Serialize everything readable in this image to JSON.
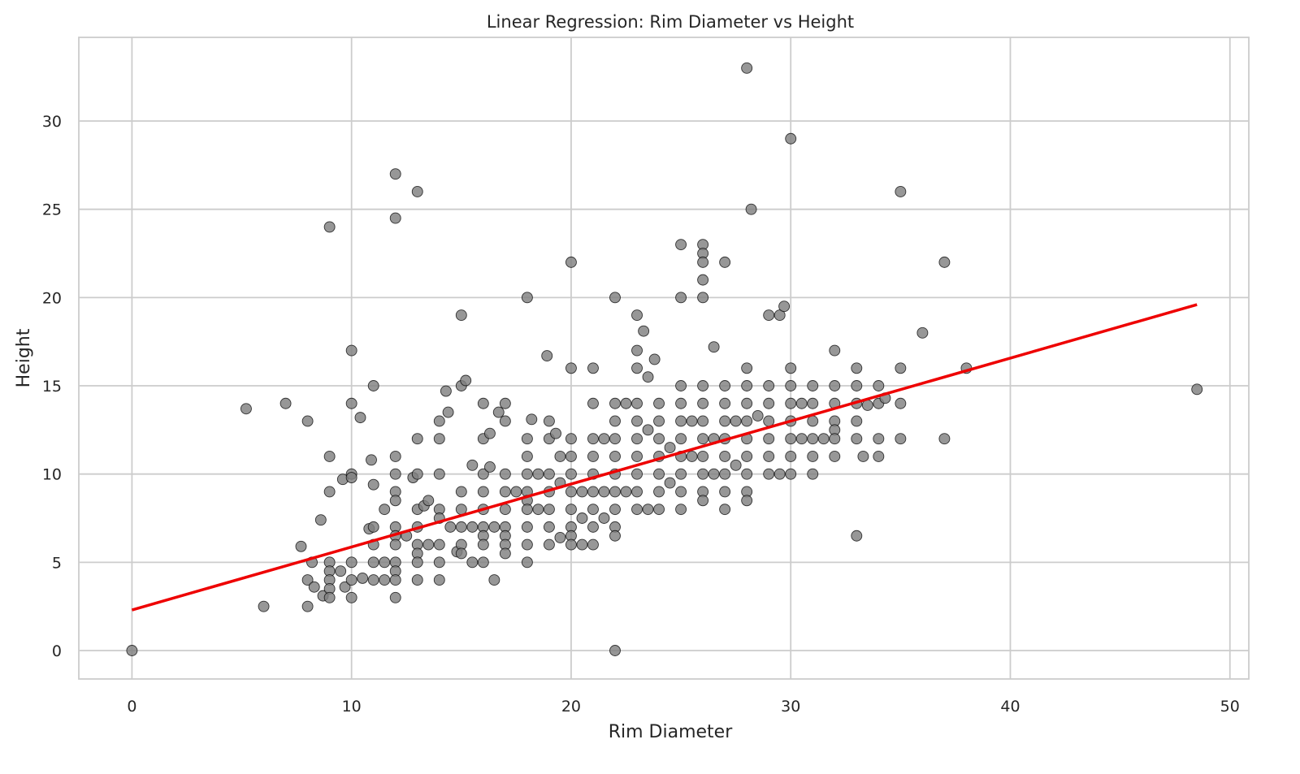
{
  "chart_data": {
    "type": "scatter",
    "title": "Linear Regression: Rim Diameter vs Height",
    "xlabel": "Rim Diameter",
    "ylabel": "Height",
    "xlim": [
      -2.42,
      50.86
    ],
    "ylim": [
      -1.61,
      34.74
    ],
    "xticks": [
      0,
      10,
      20,
      30,
      40,
      50
    ],
    "yticks": [
      0,
      5,
      10,
      15,
      20,
      25,
      30
    ],
    "grid": true,
    "legend": "none",
    "colors": {
      "points": "#808080",
      "point_edge": "#000000",
      "regression": "#ee0000",
      "grid": "#cccccc"
    },
    "regression_line": {
      "x": [
        0,
        48.5
      ],
      "y": [
        2.3,
        19.6
      ]
    },
    "points": [
      [
        0,
        0
      ],
      [
        5.2,
        13.7
      ],
      [
        6,
        2.5
      ],
      [
        7,
        14
      ],
      [
        7.7,
        5.9
      ],
      [
        8,
        13
      ],
      [
        8,
        2.5
      ],
      [
        8,
        4
      ],
      [
        8.2,
        5
      ],
      [
        8.3,
        3.6
      ],
      [
        8.6,
        7.4
      ],
      [
        8.7,
        3.1
      ],
      [
        9,
        24
      ],
      [
        9,
        11
      ],
      [
        9,
        9
      ],
      [
        9,
        5
      ],
      [
        9,
        4.5
      ],
      [
        9,
        4
      ],
      [
        9,
        3.5
      ],
      [
        9,
        3
      ],
      [
        9.5,
        4.5
      ],
      [
        9.6,
        9.7
      ],
      [
        9.7,
        3.6
      ],
      [
        10,
        17
      ],
      [
        10,
        14
      ],
      [
        10,
        10
      ],
      [
        10,
        9.8
      ],
      [
        10,
        5
      ],
      [
        10,
        4
      ],
      [
        10,
        3
      ],
      [
        10.4,
        13.2
      ],
      [
        10.5,
        4.1
      ],
      [
        10.8,
        6.9
      ],
      [
        10.9,
        10.8
      ],
      [
        11,
        15
      ],
      [
        11,
        9.4
      ],
      [
        11,
        7
      ],
      [
        11,
        6
      ],
      [
        11,
        5
      ],
      [
        11,
        4
      ],
      [
        11.5,
        8
      ],
      [
        11.5,
        5
      ],
      [
        11.5,
        4
      ],
      [
        12,
        27
      ],
      [
        12,
        24.5
      ],
      [
        12,
        11
      ],
      [
        12,
        10
      ],
      [
        12,
        9
      ],
      [
        12,
        8.5
      ],
      [
        12,
        7
      ],
      [
        12,
        6.5
      ],
      [
        12,
        6
      ],
      [
        12,
        5
      ],
      [
        12,
        4.5
      ],
      [
        12,
        4
      ],
      [
        12,
        3
      ],
      [
        12.5,
        6.5
      ],
      [
        12.8,
        9.8
      ],
      [
        13,
        26
      ],
      [
        13,
        12
      ],
      [
        13,
        10
      ],
      [
        13,
        8
      ],
      [
        13,
        7
      ],
      [
        13,
        6
      ],
      [
        13,
        5.5
      ],
      [
        13,
        5
      ],
      [
        13,
        4
      ],
      [
        13.3,
        8.2
      ],
      [
        13.5,
        8.5
      ],
      [
        13.5,
        6
      ],
      [
        14,
        13
      ],
      [
        14,
        12
      ],
      [
        14,
        10
      ],
      [
        14,
        8
      ],
      [
        14,
        7.5
      ],
      [
        14,
        6
      ],
      [
        14,
        5
      ],
      [
        14,
        4
      ],
      [
        14.3,
        14.7
      ],
      [
        14.4,
        13.5
      ],
      [
        14.5,
        7
      ],
      [
        14.8,
        5.6
      ],
      [
        15,
        19
      ],
      [
        15,
        15
      ],
      [
        15,
        9
      ],
      [
        15,
        8
      ],
      [
        15,
        7
      ],
      [
        15,
        6
      ],
      [
        15,
        5.5
      ],
      [
        15.2,
        15.3
      ],
      [
        15.5,
        10.5
      ],
      [
        15.5,
        7
      ],
      [
        15.5,
        5
      ],
      [
        16,
        14
      ],
      [
        16,
        12
      ],
      [
        16,
        10
      ],
      [
        16,
        9
      ],
      [
        16,
        8
      ],
      [
        16,
        7
      ],
      [
        16,
        6.5
      ],
      [
        16,
        6
      ],
      [
        16,
        5
      ],
      [
        16.3,
        12.3
      ],
      [
        16.3,
        10.4
      ],
      [
        16.5,
        7
      ],
      [
        16.5,
        4
      ],
      [
        16.7,
        13.5
      ],
      [
        17,
        14
      ],
      [
        17,
        13
      ],
      [
        17,
        10
      ],
      [
        17,
        9
      ],
      [
        17,
        8
      ],
      [
        17,
        7
      ],
      [
        17,
        6.5
      ],
      [
        17,
        6
      ],
      [
        17,
        5.5
      ],
      [
        17.5,
        9
      ],
      [
        18,
        20
      ],
      [
        18,
        12
      ],
      [
        18,
        11
      ],
      [
        18,
        10
      ],
      [
        18,
        9
      ],
      [
        18,
        8.5
      ],
      [
        18,
        8
      ],
      [
        18,
        7
      ],
      [
        18,
        6
      ],
      [
        18,
        5
      ],
      [
        18.2,
        13.1
      ],
      [
        18.5,
        10
      ],
      [
        18.5,
        8
      ],
      [
        18.9,
        16.7
      ],
      [
        19,
        13
      ],
      [
        19,
        12
      ],
      [
        19,
        10
      ],
      [
        19,
        9
      ],
      [
        19,
        8
      ],
      [
        19,
        7
      ],
      [
        19,
        6
      ],
      [
        19.3,
        12.3
      ],
      [
        19.5,
        11
      ],
      [
        19.5,
        9.5
      ],
      [
        19.5,
        6.4
      ],
      [
        20,
        22
      ],
      [
        20,
        16
      ],
      [
        20,
        12
      ],
      [
        20,
        11
      ],
      [
        20,
        10
      ],
      [
        20,
        9
      ],
      [
        20,
        8
      ],
      [
        20,
        7
      ],
      [
        20,
        6.5
      ],
      [
        20,
        6
      ],
      [
        20.5,
        9
      ],
      [
        20.5,
        7.5
      ],
      [
        20.5,
        6
      ],
      [
        21,
        16
      ],
      [
        21,
        14
      ],
      [
        21,
        12
      ],
      [
        21,
        11
      ],
      [
        21,
        10
      ],
      [
        21,
        9
      ],
      [
        21,
        8
      ],
      [
        21,
        7
      ],
      [
        21,
        6
      ],
      [
        21.5,
        12
      ],
      [
        21.5,
        9
      ],
      [
        21.5,
        7.5
      ],
      [
        22,
        20
      ],
      [
        22,
        14
      ],
      [
        22,
        13
      ],
      [
        22,
        12
      ],
      [
        22,
        11
      ],
      [
        22,
        10
      ],
      [
        22,
        9
      ],
      [
        22,
        8
      ],
      [
        22,
        7
      ],
      [
        22,
        6.5
      ],
      [
        22,
        0
      ],
      [
        22.5,
        14
      ],
      [
        22.5,
        9
      ],
      [
        23,
        19
      ],
      [
        23,
        17
      ],
      [
        23,
        16
      ],
      [
        23,
        14
      ],
      [
        23,
        13
      ],
      [
        23,
        12
      ],
      [
        23,
        11
      ],
      [
        23,
        10
      ],
      [
        23,
        9
      ],
      [
        23,
        8
      ],
      [
        23.3,
        18.1
      ],
      [
        23.5,
        15.5
      ],
      [
        23.5,
        12.5
      ],
      [
        23.5,
        8
      ],
      [
        23.8,
        16.5
      ],
      [
        24,
        14
      ],
      [
        24,
        13
      ],
      [
        24,
        12
      ],
      [
        24,
        11
      ],
      [
        24,
        10
      ],
      [
        24,
        9
      ],
      [
        24,
        8
      ],
      [
        24.5,
        11.5
      ],
      [
        24.5,
        9.5
      ],
      [
        25,
        23
      ],
      [
        25,
        20
      ],
      [
        25,
        15
      ],
      [
        25,
        14
      ],
      [
        25,
        13
      ],
      [
        25,
        12
      ],
      [
        25,
        11
      ],
      [
        25,
        10
      ],
      [
        25,
        9
      ],
      [
        25,
        8
      ],
      [
        25.5,
        13
      ],
      [
        25.5,
        11
      ],
      [
        26,
        23
      ],
      [
        26,
        22.5
      ],
      [
        26,
        22
      ],
      [
        26,
        21
      ],
      [
        26,
        20
      ],
      [
        26,
        15
      ],
      [
        26,
        14
      ],
      [
        26,
        13
      ],
      [
        26,
        12
      ],
      [
        26,
        11
      ],
      [
        26,
        10
      ],
      [
        26,
        9
      ],
      [
        26,
        8.5
      ],
      [
        26.5,
        17.2
      ],
      [
        26.5,
        12
      ],
      [
        26.5,
        10
      ],
      [
        27,
        22
      ],
      [
        27,
        15
      ],
      [
        27,
        14
      ],
      [
        27,
        13
      ],
      [
        27,
        12
      ],
      [
        27,
        11
      ],
      [
        27,
        10
      ],
      [
        27,
        9
      ],
      [
        27,
        8
      ],
      [
        27.5,
        13
      ],
      [
        27.5,
        10.5
      ],
      [
        28,
        33
      ],
      [
        28,
        16
      ],
      [
        28,
        15
      ],
      [
        28,
        14
      ],
      [
        28,
        13
      ],
      [
        28,
        12
      ],
      [
        28,
        11
      ],
      [
        28,
        10
      ],
      [
        28,
        9
      ],
      [
        28,
        8.5
      ],
      [
        28.2,
        25
      ],
      [
        28.5,
        13.3
      ],
      [
        29,
        19
      ],
      [
        29,
        15
      ],
      [
        29,
        14
      ],
      [
        29,
        13
      ],
      [
        29,
        12
      ],
      [
        29,
        11
      ],
      [
        29,
        10
      ],
      [
        29.5,
        19
      ],
      [
        29.5,
        10
      ],
      [
        29.7,
        19.5
      ],
      [
        30,
        29
      ],
      [
        30,
        16
      ],
      [
        30,
        15
      ],
      [
        30,
        14
      ],
      [
        30,
        13
      ],
      [
        30,
        12
      ],
      [
        30,
        11
      ],
      [
        30,
        10
      ],
      [
        30.5,
        14
      ],
      [
        30.5,
        12
      ],
      [
        31,
        15
      ],
      [
        31,
        14
      ],
      [
        31,
        13
      ],
      [
        31,
        12
      ],
      [
        31,
        11
      ],
      [
        31,
        10
      ],
      [
        31.5,
        12
      ],
      [
        32,
        17
      ],
      [
        32,
        15
      ],
      [
        32,
        14
      ],
      [
        32,
        13
      ],
      [
        32,
        12.5
      ],
      [
        32,
        12
      ],
      [
        32,
        11
      ],
      [
        33,
        16
      ],
      [
        33,
        15
      ],
      [
        33,
        14
      ],
      [
        33,
        13
      ],
      [
        33,
        12
      ],
      [
        33,
        6.5
      ],
      [
        33.3,
        11
      ],
      [
        33.5,
        13.9
      ],
      [
        34,
        15
      ],
      [
        34,
        14
      ],
      [
        34,
        12
      ],
      [
        34,
        11
      ],
      [
        34.3,
        14.3
      ],
      [
        35,
        26
      ],
      [
        35,
        16
      ],
      [
        35,
        14
      ],
      [
        35,
        12
      ],
      [
        36,
        18
      ],
      [
        37,
        22
      ],
      [
        37,
        12
      ],
      [
        38,
        16
      ],
      [
        48.5,
        14.8
      ]
    ]
  }
}
